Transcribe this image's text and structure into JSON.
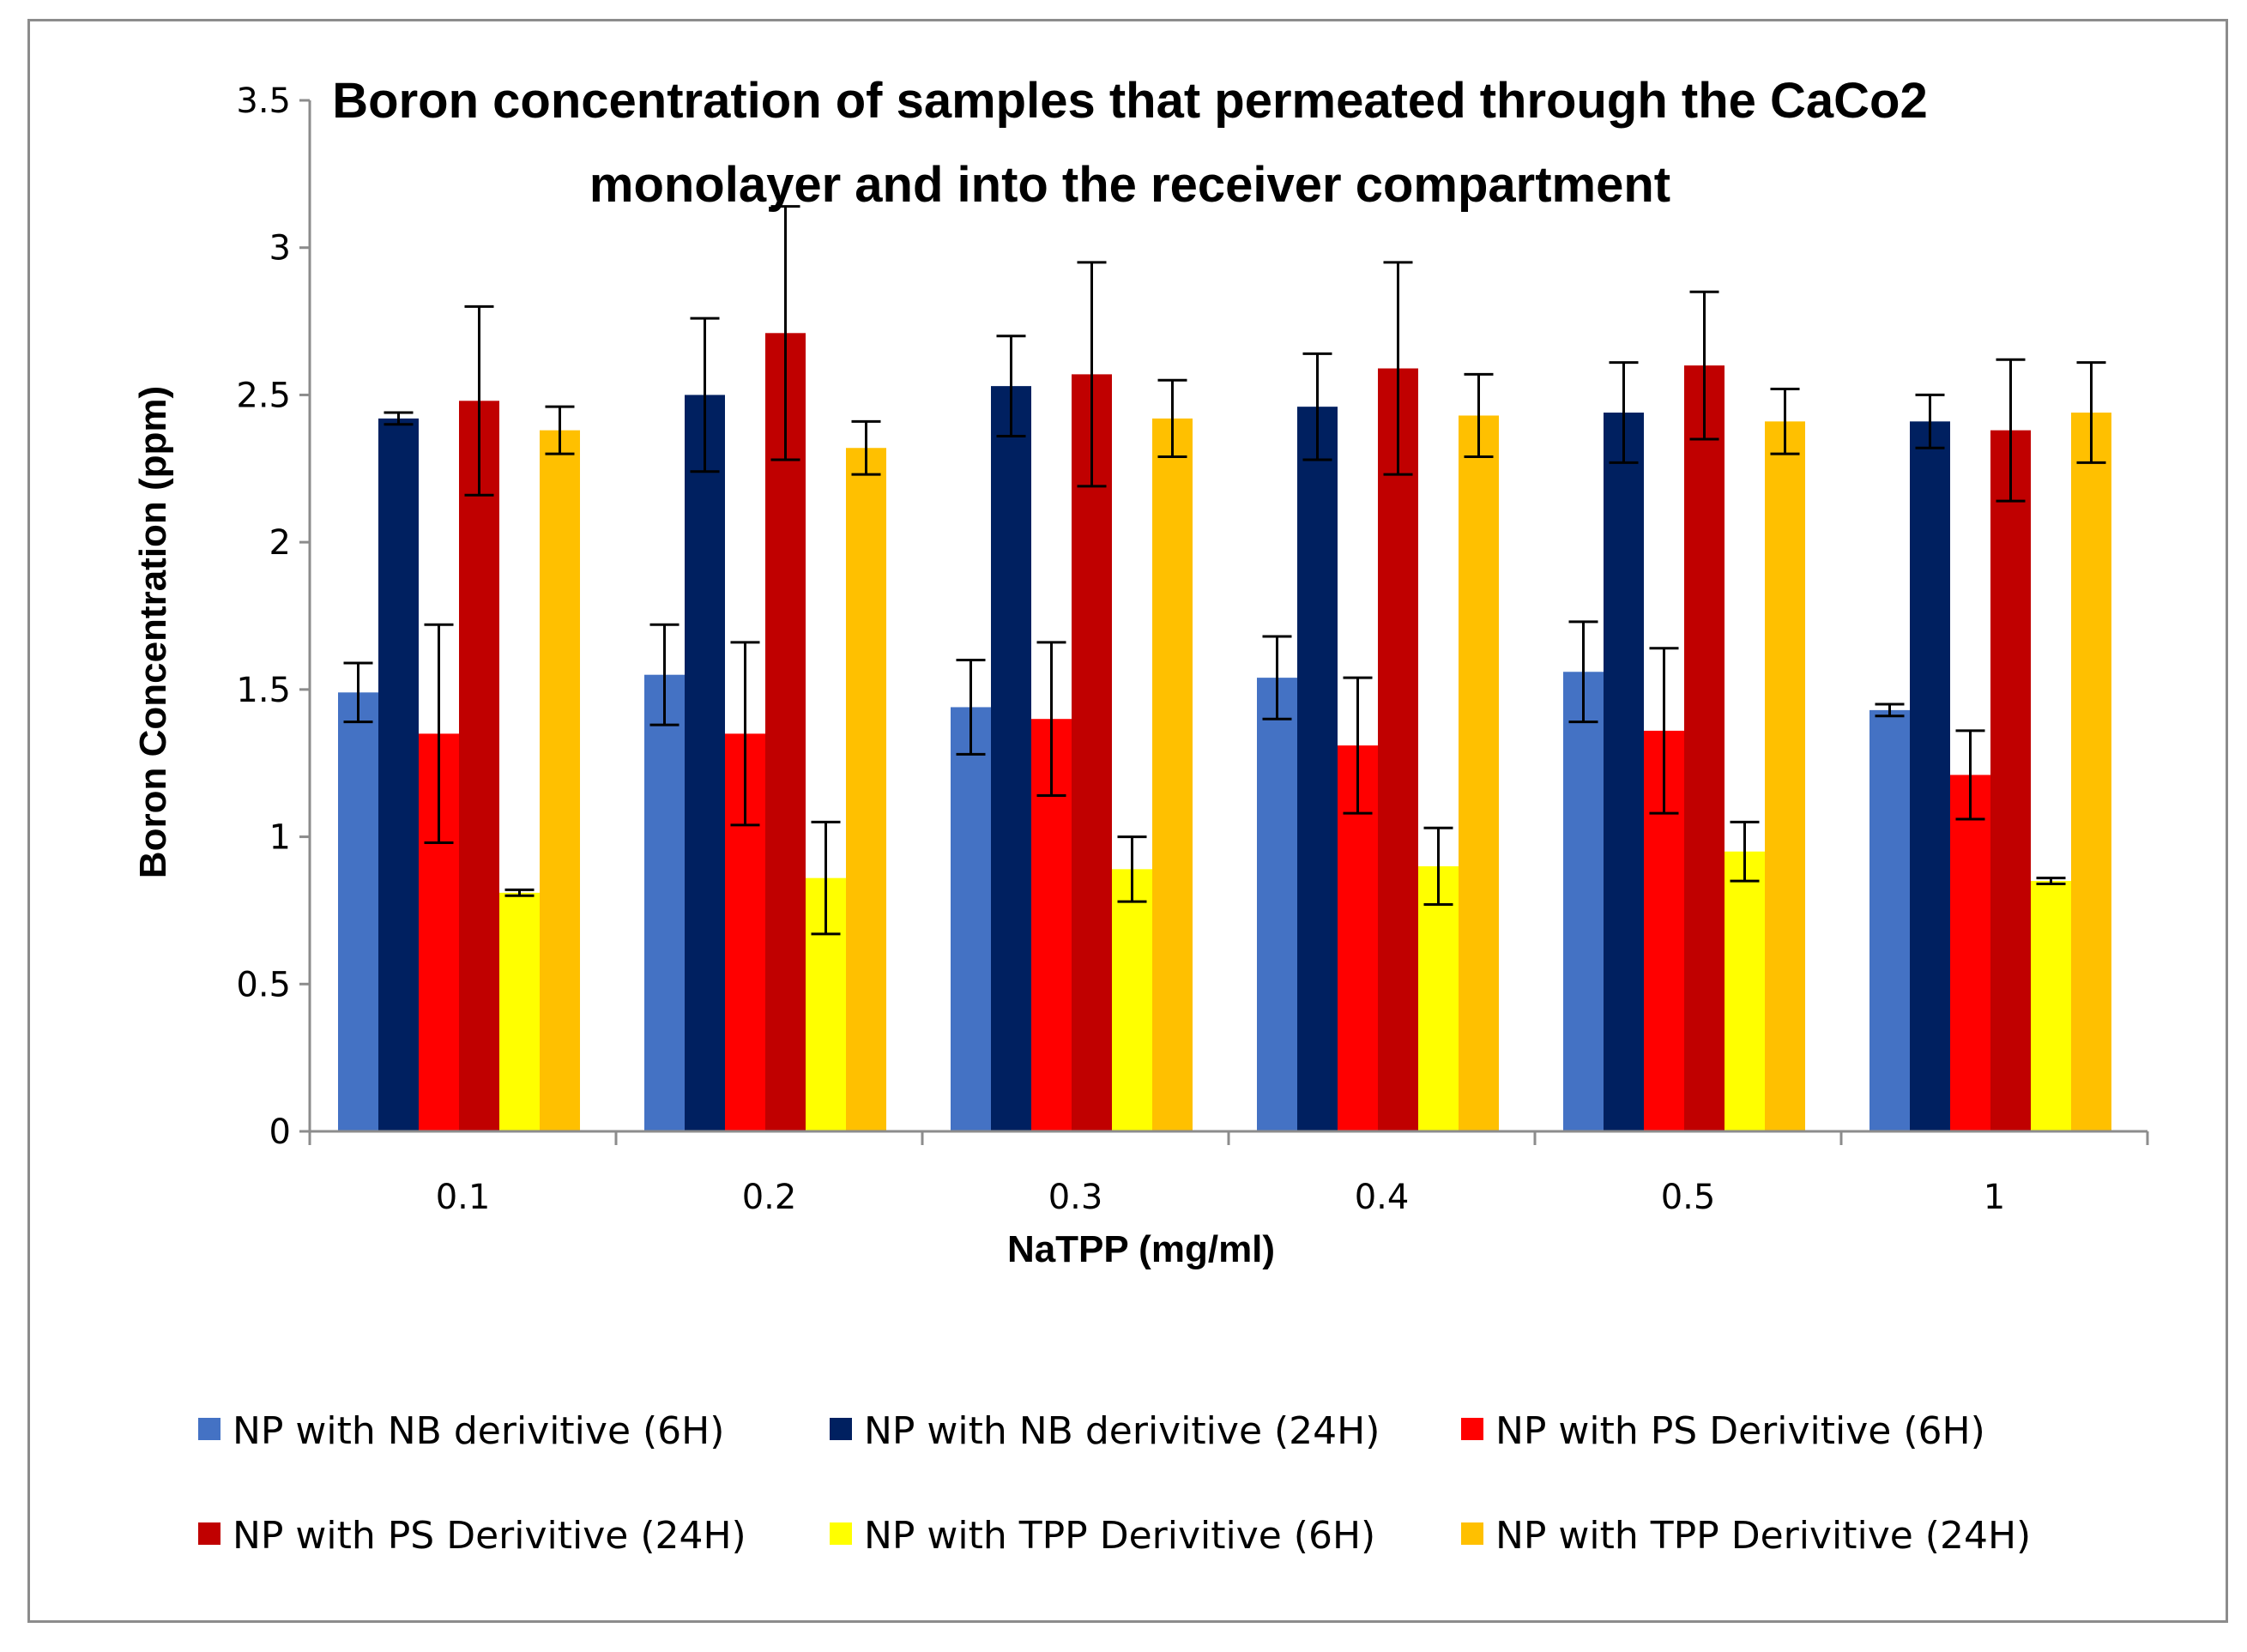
{
  "chart_data": {
    "type": "bar",
    "title_line1": "Boron concentration of samples that permeated through the CaCo2",
    "title_line2": "monolayer and into the receiver compartment",
    "xlabel": "NaTPP (mg/ml)",
    "ylabel": "Boron Concentration (ppm)",
    "ylim": [
      0,
      3.5
    ],
    "yticks": [
      "0",
      "0.5",
      "1",
      "1.5",
      "2",
      "2.5",
      "3",
      "3.5"
    ],
    "categories": [
      "0.1",
      "0.2",
      "0.3",
      "0.4",
      "0.5",
      "1"
    ],
    "grid": false,
    "legend_position": "bottom",
    "series": [
      {
        "name": "NP with NB derivitive (6H)",
        "color": "#4472C4",
        "values": [
          1.49,
          1.55,
          1.44,
          1.54,
          1.56,
          1.43
        ],
        "errors": [
          0.1,
          0.17,
          0.16,
          0.14,
          0.17,
          0.02
        ]
      },
      {
        "name": "NP with NB derivitive (24H)",
        "color": "#002060",
        "values": [
          2.42,
          2.5,
          2.53,
          2.46,
          2.44,
          2.41
        ],
        "errors": [
          0.02,
          0.26,
          0.17,
          0.18,
          0.17,
          0.09
        ]
      },
      {
        "name": "NP with PS Derivitive (6H)",
        "color": "#FF0000",
        "values": [
          1.35,
          1.35,
          1.4,
          1.31,
          1.36,
          1.21
        ],
        "errors": [
          0.37,
          0.31,
          0.26,
          0.23,
          0.28,
          0.15
        ]
      },
      {
        "name": "NP with PS Derivitive (24H)",
        "color": "#C00000",
        "values": [
          2.48,
          2.71,
          2.57,
          2.59,
          2.6,
          2.38
        ],
        "errors": [
          0.32,
          0.43,
          0.38,
          0.36,
          0.25,
          0.24
        ]
      },
      {
        "name": "NP with TPP Derivitive (6H)",
        "color": "#FFFF00",
        "values": [
          0.81,
          0.86,
          0.89,
          0.9,
          0.95,
          0.85
        ],
        "errors": [
          0.01,
          0.19,
          0.11,
          0.13,
          0.1,
          0.01
        ]
      },
      {
        "name": "NP with TPP Derivitive (24H)",
        "color": "#FFC000",
        "values": [
          2.38,
          2.32,
          2.42,
          2.43,
          2.41,
          2.44
        ],
        "errors": [
          0.08,
          0.09,
          0.13,
          0.14,
          0.11,
          0.17
        ]
      }
    ]
  }
}
